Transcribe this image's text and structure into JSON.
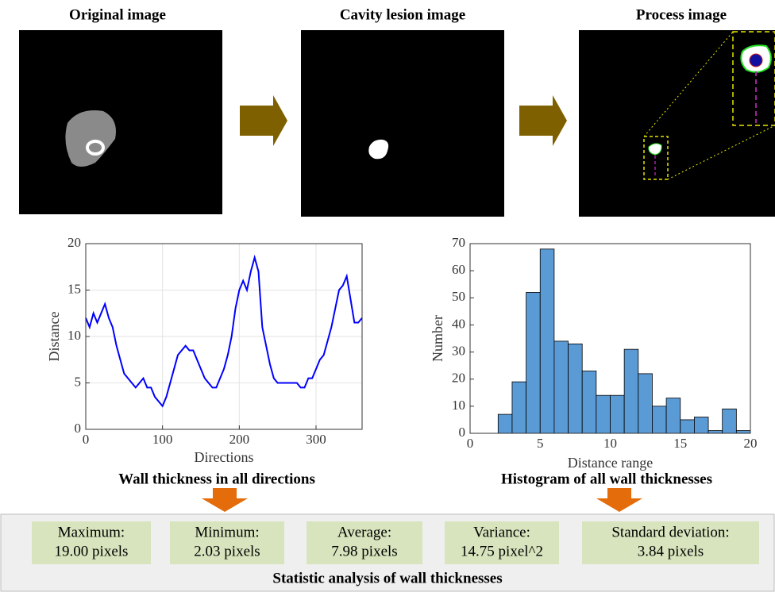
{
  "images": [
    {
      "title": "Original image"
    },
    {
      "title": "Cavity lesion image"
    },
    {
      "title": "Process image"
    }
  ],
  "chart_data": [
    {
      "type": "line",
      "title": "Wall thickness in all directions",
      "xlabel": "Directions",
      "ylabel": "Distance",
      "x": [
        0,
        5,
        10,
        15,
        20,
        25,
        30,
        35,
        40,
        45,
        50,
        55,
        60,
        65,
        70,
        75,
        80,
        85,
        90,
        95,
        100,
        105,
        110,
        115,
        120,
        125,
        130,
        135,
        140,
        145,
        150,
        155,
        160,
        165,
        170,
        175,
        180,
        185,
        190,
        195,
        200,
        205,
        210,
        215,
        220,
        225,
        230,
        235,
        240,
        245,
        250,
        255,
        260,
        265,
        270,
        275,
        280,
        285,
        290,
        295,
        300,
        305,
        310,
        315,
        320,
        325,
        330,
        335,
        340,
        345,
        350,
        355,
        360
      ],
      "values": [
        12,
        11,
        12.5,
        11.5,
        12.5,
        13.5,
        12,
        11,
        9,
        7.5,
        6,
        5.5,
        5,
        4.5,
        5,
        5.5,
        4.5,
        4.5,
        3.5,
        3,
        2.5,
        3.5,
        5,
        6.5,
        8,
        8.5,
        9,
        8.5,
        8.5,
        7.5,
        6.5,
        5.5,
        5,
        4.5,
        4.5,
        5.5,
        6.5,
        8,
        10,
        13,
        15,
        16,
        15,
        17,
        18.5,
        17,
        11,
        9,
        7,
        5.5,
        5,
        5,
        5,
        5,
        5,
        5,
        4.5,
        4.5,
        5.5,
        5.5,
        6.5,
        7.5,
        8,
        9.5,
        11,
        13,
        15,
        15.5,
        16.5,
        14,
        11.5,
        11.5,
        12
      ],
      "color": "#0000ff",
      "xlim": [
        0,
        360
      ],
      "xticks": [
        0,
        100,
        200,
        300
      ],
      "ylim": [
        0,
        20
      ],
      "yticks": [
        0,
        5,
        10,
        15,
        20
      ],
      "grid": true
    },
    {
      "type": "histogram",
      "title": "Histogram of all wall thicknesses",
      "xlabel": "Distance range",
      "ylabel": "Number",
      "bins": [
        2,
        3,
        4,
        5,
        6,
        7,
        8,
        9,
        10,
        11,
        12,
        13,
        14,
        15,
        16,
        17,
        18,
        19,
        20
      ],
      "counts": [
        7,
        19,
        52,
        68,
        34,
        33,
        23,
        14,
        14,
        31,
        22,
        10,
        13,
        5,
        6,
        1,
        9,
        1
      ],
      "color": "#5b9bd5",
      "xlim": [
        0,
        20
      ],
      "xticks": [
        0,
        5,
        10,
        15,
        20
      ],
      "ylim": [
        0,
        70
      ],
      "yticks": [
        0,
        10,
        20,
        30,
        40,
        50,
        60,
        70
      ],
      "grid": false
    }
  ],
  "statistics": {
    "title": "Statistic analysis of wall thicknesses",
    "items": [
      {
        "label": "Maximum:",
        "value": "19.00 pixels"
      },
      {
        "label": "Minimum:",
        "value": "2.03 pixels"
      },
      {
        "label": "Average:",
        "value": "7.98 pixels"
      },
      {
        "label": "Variance:",
        "value": "14.75 pixel^2"
      },
      {
        "label": "Standard deviation:",
        "value": "3.84 pixels"
      }
    ]
  }
}
